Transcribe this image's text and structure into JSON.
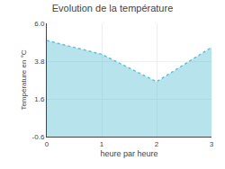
{
  "chart_data": {
    "type": "area",
    "title": "Evolution de la température",
    "xlabel": "heure par heure",
    "ylabel": "Température en °C",
    "x": [
      0,
      1,
      2,
      3
    ],
    "values": [
      5.0,
      4.2,
      2.6,
      4.6
    ],
    "color": "#60c0d8",
    "line_style": "dotted",
    "xlim": [
      0,
      3
    ],
    "xticks": [
      0,
      1,
      2,
      3
    ],
    "ylim": [
      -0.6,
      6.0
    ],
    "yticks": [
      -0.6,
      1.6,
      3.8,
      {
        "value": 6.0,
        "label": "6.0"
      }
    ],
    "grid": true
  }
}
